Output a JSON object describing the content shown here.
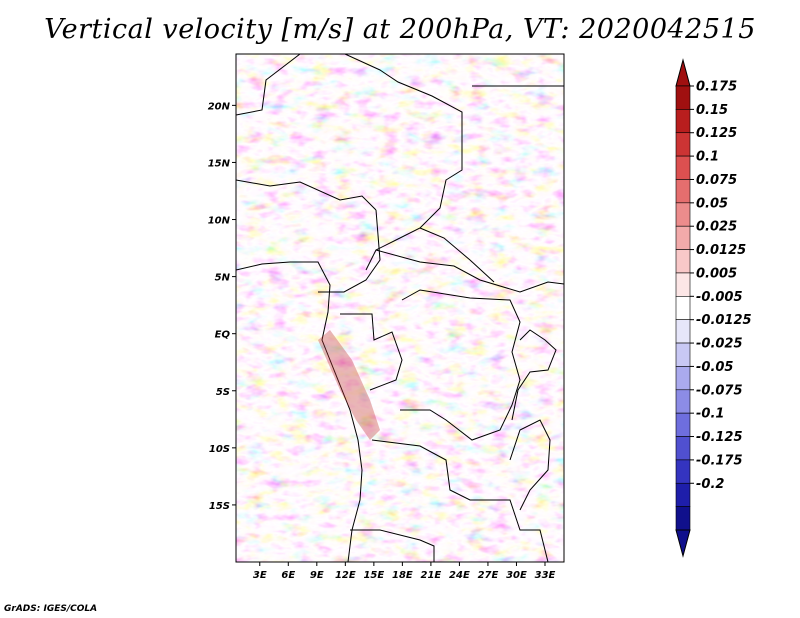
{
  "chart_data": {
    "type": "heatmap",
    "title": "Vertical velocity [m/s] at 200hPa, VT: 2020042515",
    "variable": "Vertical velocity",
    "units": "m/s",
    "level": "200hPa",
    "valid_time": "2020042515",
    "x_ticks": [
      "3E",
      "6E",
      "9E",
      "12E",
      "15E",
      "18E",
      "21E",
      "24E",
      "27E",
      "30E",
      "33E"
    ],
    "x_tick_values": [
      3,
      6,
      9,
      12,
      15,
      18,
      21,
      24,
      27,
      30,
      33
    ],
    "y_ticks": [
      "20N",
      "15N",
      "10N",
      "5N",
      "EQ",
      "5S",
      "10S",
      "15S"
    ],
    "y_tick_values": [
      20,
      15,
      10,
      5,
      0,
      -5,
      -10,
      -15
    ],
    "xlim": [
      0.5,
      35
    ],
    "ylim": [
      -20,
      24.5
    ],
    "colorbar_labels": [
      "0.175",
      "0.15",
      "0.125",
      "0.1",
      "0.075",
      "0.05",
      "0.025",
      "0.0125",
      "0.005",
      "-0.005",
      "-0.0125",
      "-0.025",
      "-0.05",
      "-0.075",
      "-0.1",
      "-0.125",
      "-0.175",
      "-0.2"
    ],
    "colorbar_colors": [
      "#a01010",
      "#b81e1e",
      "#cc3434",
      "#dc5050",
      "#e56e6e",
      "#ec8c8c",
      "#f2aaaa",
      "#f8c8c8",
      "#fce6e6",
      "#ffffff",
      "#e6e6fa",
      "#c8c8f4",
      "#aaaaee",
      "#8c8ce6",
      "#6e6ede",
      "#5050d0",
      "#3434c0",
      "#1e1eaa",
      "#10108c"
    ],
    "colorbar_top_color": "#a01010",
    "colorbar_bottom_color": "#10108c"
  },
  "credit": "GrADS: IGES/COLA"
}
